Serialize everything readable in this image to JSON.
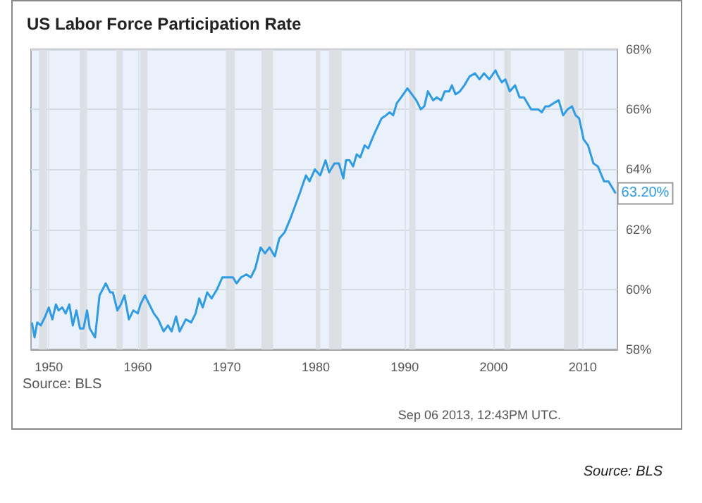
{
  "chart_data": {
    "type": "line",
    "title": "US Labor Force Participation Rate",
    "x": [
      1948.1,
      1948.4,
      1948.7,
      1949.1,
      1949.6,
      1950,
      1950.4,
      1950.8,
      1951.1,
      1951.5,
      1951.9,
      1952.3,
      1952.7,
      1953.1,
      1953.5,
      1953.9,
      1954.3,
      1954.6,
      1955.2,
      1955.7,
      1956.4,
      1956.9,
      1957.2,
      1957.7,
      1958.1,
      1958.5,
      1959,
      1959.5,
      1960,
      1960.3,
      1960.8,
      1961.3,
      1961.8,
      1962.3,
      1962.9,
      1963.4,
      1963.8,
      1964.3,
      1964.7,
      1965.4,
      1966,
      1966.5,
      1966.9,
      1967.3,
      1967.8,
      1968.3,
      1968.9,
      1969.5,
      1970.2,
      1970.7,
      1971.1,
      1971.6,
      1972.2,
      1972.7,
      1973.2,
      1973.8,
      1974.3,
      1974.8,
      1975.4,
      1975.9,
      1976.5,
      1977.2,
      1977.7,
      1978.2,
      1978.9,
      1979.3,
      1979.9,
      1980.5,
      1981.1,
      1981.5,
      1982.1,
      1982.6,
      1983.1,
      1983.4,
      1983.8,
      1984.2,
      1984.6,
      1985,
      1985.5,
      1985.9,
      1986.6,
      1987.4,
      1987.9,
      1988.3,
      1988.7,
      1989.1,
      1989.6,
      1990.3,
      1990.8,
      1991.3,
      1991.8,
      1992.2,
      1992.6,
      1993.2,
      1993.6,
      1994.1,
      1994.5,
      1995,
      1995.3,
      1995.7,
      1996.2,
      1996.7,
      1997.3,
      1997.9,
      1998.4,
      1998.9,
      1999.5,
      2000.2,
      2000.5,
      2000.9,
      2001.3,
      2001.8,
      2002.4,
      2002.9,
      2003.4,
      2004.2,
      2005,
      2005.4,
      2005.8,
      2006.2,
      2006.7,
      2007.3,
      2007.8,
      2008.3,
      2008.8,
      2009.2,
      2009.6,
      2010.1,
      2010.6,
      2011.2,
      2011.7,
      2012.4,
      2012.9,
      2013.3,
      2013.7
    ],
    "series": [
      {
        "color": "#2e9be2",
        "values": [
          58.9,
          58.4,
          58.9,
          58.8,
          59.1,
          59.4,
          59.0,
          59.5,
          59.3,
          59.4,
          59.2,
          59.5,
          58.8,
          59.3,
          58.7,
          58.7,
          59.3,
          58.7,
          58.4,
          59.8,
          60.2,
          59.9,
          59.9,
          59.3,
          59.5,
          59.8,
          59.0,
          59.3,
          59.2,
          59.5,
          59.8,
          59.5,
          59.2,
          59.0,
          58.6,
          58.8,
          58.6,
          59.1,
          58.6,
          59.0,
          58.9,
          59.2,
          59.7,
          59.4,
          59.9,
          59.7,
          60.0,
          60.4,
          60.4,
          60.4,
          60.2,
          60.4,
          60.5,
          60.4,
          60.7,
          61.4,
          61.2,
          61.4,
          61.1,
          61.7,
          61.9,
          62.4,
          62.8,
          63.2,
          63.8,
          63.6,
          64.0,
          63.8,
          64.3,
          63.9,
          64.2,
          64.2,
          63.7,
          64.3,
          64.3,
          64.1,
          64.5,
          64.4,
          64.8,
          64.7,
          65.2,
          65.7,
          65.8,
          65.9,
          65.8,
          66.2,
          66.4,
          66.7,
          66.5,
          66.3,
          66.0,
          66.1,
          66.6,
          66.3,
          66.4,
          66.3,
          66.6,
          66.6,
          66.8,
          66.5,
          66.6,
          66.8,
          67.1,
          67.2,
          67.0,
          67.2,
          67.0,
          67.3,
          67.1,
          66.9,
          67.0,
          66.6,
          66.8,
          66.4,
          66.4,
          66.0,
          66.0,
          65.9,
          66.1,
          66.1,
          66.2,
          66.3,
          65.8,
          66.0,
          66.1,
          65.8,
          65.7,
          65.0,
          64.8,
          64.2,
          64.1,
          63.6,
          63.6,
          63.4,
          63.2
        ],
        "value_labels": [
          null,
          null,
          null,
          null,
          null,
          null,
          null,
          null,
          null,
          null,
          null,
          null,
          null,
          null,
          null,
          null,
          null,
          null,
          null,
          null,
          null,
          null,
          null,
          null,
          null,
          null,
          null,
          null,
          null,
          null,
          null,
          null,
          null,
          null,
          null,
          null,
          null,
          null,
          null,
          null,
          null,
          null,
          null,
          null,
          null,
          null,
          null,
          null,
          null,
          null,
          null,
          null,
          null,
          null,
          null,
          null,
          null,
          null,
          null,
          null,
          null,
          null,
          null,
          null,
          null,
          null,
          null,
          null,
          null,
          null,
          null,
          null,
          null,
          null,
          null,
          null,
          null,
          null,
          null,
          null,
          null,
          null,
          null,
          null,
          null,
          null,
          null,
          null,
          null,
          null,
          null,
          null,
          null,
          null,
          null,
          null,
          null,
          null,
          null,
          null,
          null,
          null,
          null,
          null,
          null,
          null,
          null,
          null,
          null,
          null,
          null,
          null,
          null,
          null,
          null,
          null,
          null,
          null,
          null,
          null,
          null,
          null,
          null,
          null,
          null,
          null,
          null,
          null,
          null,
          null,
          null,
          null,
          null,
          null,
          "63.20%"
        ]
      }
    ],
    "xlim": [
      1948,
      2013.9
    ],
    "xticks": [
      1950,
      1960,
      1970,
      1980,
      1990,
      2000,
      2010
    ],
    "ylim": [
      58,
      68
    ],
    "yticks": [
      {
        "value": 58,
        "label": "58%"
      },
      {
        "value": 60,
        "label": "60%"
      },
      {
        "value": 62,
        "label": "62%"
      },
      {
        "value": 64,
        "label": "64%"
      },
      {
        "value": 66,
        "label": "66%"
      },
      {
        "value": 68,
        "label": "68%"
      }
    ],
    "bands": [
      {
        "axis": "x",
        "from": 1948.9,
        "to": 1949.8,
        "color": "#dcdfe3"
      },
      {
        "axis": "x",
        "from": 1953.5,
        "to": 1954.3,
        "color": "#dcdfe3"
      },
      {
        "axis": "x",
        "from": 1957.6,
        "to": 1958.3,
        "color": "#dcdfe3"
      },
      {
        "axis": "x",
        "from": 1960.3,
        "to": 1961.1,
        "color": "#dcdfe3"
      },
      {
        "axis": "x",
        "from": 1969.9,
        "to": 1970.9,
        "color": "#dcdfe3"
      },
      {
        "axis": "x",
        "from": 1973.9,
        "to": 1975.2,
        "color": "#dcdfe3"
      },
      {
        "axis": "x",
        "from": 1980.0,
        "to": 1980.5,
        "color": "#dcdfe3"
      },
      {
        "axis": "x",
        "from": 1981.5,
        "to": 1982.9,
        "color": "#dcdfe3"
      },
      {
        "axis": "x",
        "from": 1990.5,
        "to": 1991.2,
        "color": "#dcdfe3"
      },
      {
        "axis": "x",
        "from": 2001.2,
        "to": 2001.9,
        "color": "#dcdfe3"
      },
      {
        "axis": "x",
        "from": 2007.9,
        "to": 2009.5,
        "color": "#dcdfe3"
      }
    ],
    "grid": true,
    "marker": "none",
    "line_style": "solid",
    "annotations": [
      "Source: BLS",
      "Sep 06 2013, 12:43PM UTC.",
      "Source: BLS"
    ]
  }
}
